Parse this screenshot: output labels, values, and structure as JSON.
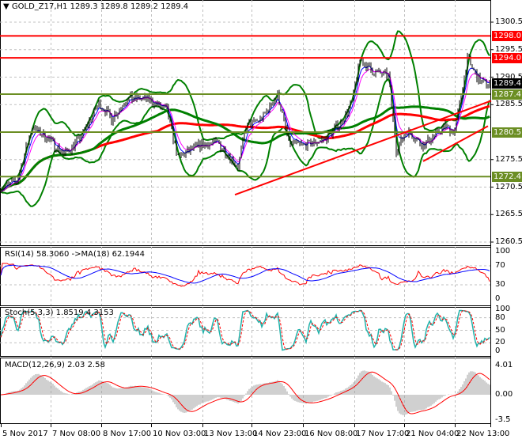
{
  "header": {
    "symbol": "GOLD_Z17,H1",
    "ohlc": "1289.3 1289.8 1289.2 1289.4"
  },
  "main_axis": {
    "labels": [
      "1300.5",
      "1295.5",
      "1290.5",
      "1285.5",
      "1275.5",
      "1270.5",
      "1265.5",
      "1260.5"
    ],
    "values": [
      1300.5,
      1295.5,
      1290.5,
      1285.5,
      1275.5,
      1270.5,
      1265.5,
      1260.5
    ]
  },
  "levels": [
    {
      "label": "1298.0",
      "value": 1298.0,
      "color": "#ff0000"
    },
    {
      "label": "1294.0",
      "value": 1294.0,
      "color": "#ff0000"
    },
    {
      "label": "1287.4",
      "value": 1287.4,
      "color": "#6b8e23"
    },
    {
      "label": "1280.5",
      "value": 1280.5,
      "color": "#6b8e23"
    },
    {
      "label": "1272.4",
      "value": 1272.4,
      "color": "#6b8e23"
    }
  ],
  "current_price": {
    "label": "1289.4",
    "value": 1289.4
  },
  "rsi": {
    "title": "RSI(14) 58.3060  ->MA(18) 62.1944",
    "axis": [
      "100",
      "70",
      "30",
      "0"
    ]
  },
  "stoch": {
    "title": "Stoch(5,3,3) 1.8519 4.3153",
    "axis": [
      "100",
      "80",
      "50",
      "20",
      "0"
    ]
  },
  "macd": {
    "title": "MACD(12,26,9) 2.03 2.58",
    "axis": [
      "4.01",
      "0.00",
      "-3.5"
    ]
  },
  "time_axis": [
    "5 Nov 2017",
    "7 Nov 08:00",
    "8 Nov 17:00",
    "10 Nov 03:00",
    "13 Nov 13:00",
    "14 Nov 23:00",
    "16 Nov 08:00",
    "17 Nov 17:00",
    "21 Nov 04:00",
    "22 Nov 13:00"
  ],
  "colors": {
    "bull_bear_bars": "#000000",
    "bollinger": "#008000",
    "ma_slow": "#ff0000",
    "ma_mid": "#008000",
    "rsi": "#ff0000",
    "rsi_ma": "#0000ff",
    "stoch_main": "#20b2aa",
    "stoch_signal": "#ff0000",
    "macd_hist": "#a0a0a0",
    "macd_signal": "#ff0000"
  },
  "chart_data": {
    "type": "line",
    "price_waypoints": [
      [
        0,
        1270.5
      ],
      [
        10,
        1271.5
      ],
      [
        20,
        1281.5
      ],
      [
        30,
        1279.3
      ],
      [
        40,
        1276.5
      ],
      [
        50,
        1279.3
      ],
      [
        62,
        1285.8
      ],
      [
        70,
        1283
      ],
      [
        80,
        1286.6
      ],
      [
        92,
        1286.6
      ],
      [
        105,
        1284.4
      ],
      [
        112,
        1275.8
      ],
      [
        125,
        1278
      ],
      [
        137,
        1278.6
      ],
      [
        150,
        1274.3
      ],
      [
        155,
        1281.5
      ],
      [
        165,
        1283
      ],
      [
        175,
        1287.3
      ],
      [
        182,
        1278.6
      ],
      [
        192,
        1278
      ],
      [
        205,
        1279.3
      ],
      [
        215,
        1282.2
      ],
      [
        222,
        1285.8
      ],
      [
        227,
        1293.7
      ],
      [
        235,
        1291.5
      ],
      [
        245,
        1290.8
      ],
      [
        250,
        1277.2
      ],
      [
        257,
        1280.8
      ],
      [
        267,
        1278
      ],
      [
        280,
        1281.5
      ],
      [
        287,
        1280.8
      ],
      [
        295,
        1293.7
      ],
      [
        302,
        1290
      ],
      [
        305,
        1289.4
      ]
    ],
    "trendlines": [
      {
        "from": [
          148,
          1269.1
        ],
        "to": [
          310,
          1286.2
        ],
        "color": "#ff0000"
      },
      {
        "from": [
          267,
          1275.2
        ],
        "to": [
          308,
          1281.6
        ],
        "color": "#ff0000"
      }
    ],
    "ylim": [
      1259.5,
      1305
    ]
  }
}
